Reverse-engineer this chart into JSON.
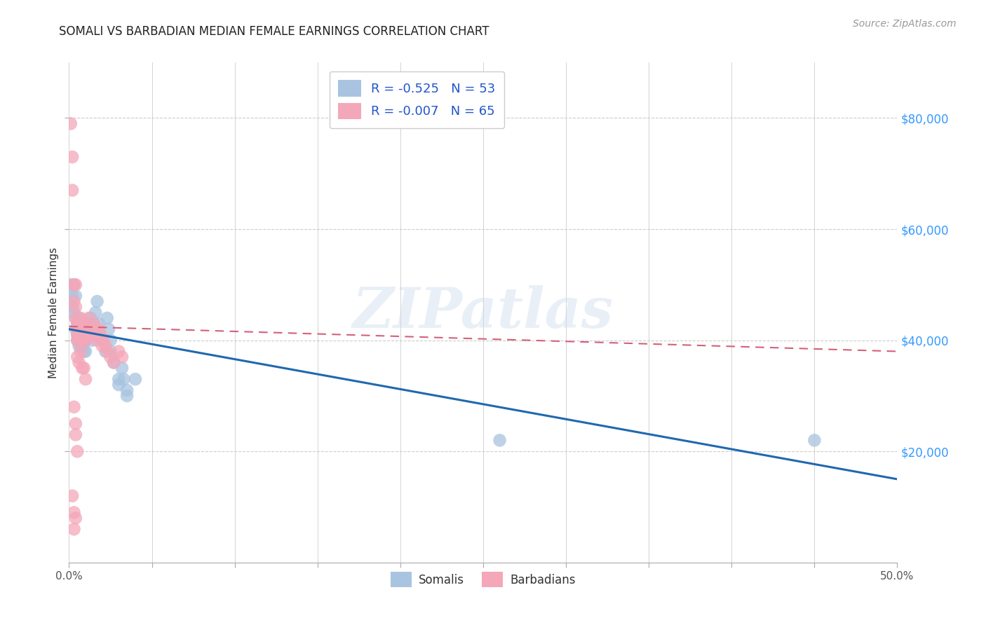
{
  "title": "SOMALI VS BARBADIAN MEDIAN FEMALE EARNINGS CORRELATION CHART",
  "source": "Source: ZipAtlas.com",
  "ylabel": "Median Female Earnings",
  "y_ticks": [
    20000,
    40000,
    60000,
    80000
  ],
  "y_tick_labels": [
    "$20,000",
    "$40,000",
    "$60,000",
    "$80,000"
  ],
  "x_min": 0.0,
  "x_max": 0.5,
  "y_min": 0,
  "y_max": 90000,
  "somali_R": -0.525,
  "somali_N": 53,
  "barbadian_R": -0.007,
  "barbadian_N": 65,
  "somali_color": "#a8c4e0",
  "barbadian_color": "#f4a7b9",
  "somali_line_color": "#2068b0",
  "barbadian_line_color": "#d4607a",
  "legend_label_somali": "Somalis",
  "legend_label_barbadian": "Barbadians",
  "somali_line_y0": 42000,
  "somali_line_y1": 15000,
  "barbadian_line_y0": 42500,
  "barbadian_line_y1": 38000,
  "somali_points": [
    [
      0.001,
      50000
    ],
    [
      0.002,
      48000
    ],
    [
      0.002,
      46000
    ],
    [
      0.003,
      50000
    ],
    [
      0.003,
      45000
    ],
    [
      0.004,
      48000
    ],
    [
      0.004,
      44000
    ],
    [
      0.004,
      42000
    ],
    [
      0.005,
      43000
    ],
    [
      0.005,
      41000
    ],
    [
      0.005,
      40000
    ],
    [
      0.006,
      44000
    ],
    [
      0.006,
      43000
    ],
    [
      0.006,
      41000
    ],
    [
      0.006,
      39000
    ],
    [
      0.007,
      42000
    ],
    [
      0.007,
      41000
    ],
    [
      0.007,
      39000
    ],
    [
      0.008,
      43000
    ],
    [
      0.008,
      41000
    ],
    [
      0.008,
      39000
    ],
    [
      0.009,
      40000
    ],
    [
      0.009,
      38000
    ],
    [
      0.01,
      42000
    ],
    [
      0.01,
      40000
    ],
    [
      0.01,
      38000
    ],
    [
      0.011,
      41000
    ],
    [
      0.012,
      43000
    ],
    [
      0.013,
      44000
    ],
    [
      0.013,
      42000
    ],
    [
      0.014,
      40000
    ],
    [
      0.015,
      43000
    ],
    [
      0.015,
      41000
    ],
    [
      0.016,
      45000
    ],
    [
      0.017,
      47000
    ],
    [
      0.018,
      43000
    ],
    [
      0.019,
      41000
    ],
    [
      0.02,
      40000
    ],
    [
      0.022,
      38000
    ],
    [
      0.023,
      44000
    ],
    [
      0.024,
      42000
    ],
    [
      0.025,
      40000
    ],
    [
      0.025,
      38000
    ],
    [
      0.027,
      36000
    ],
    [
      0.03,
      33000
    ],
    [
      0.03,
      32000
    ],
    [
      0.032,
      35000
    ],
    [
      0.033,
      33000
    ],
    [
      0.035,
      31000
    ],
    [
      0.035,
      30000
    ],
    [
      0.04,
      33000
    ],
    [
      0.26,
      22000
    ],
    [
      0.45,
      22000
    ]
  ],
  "barbadian_points": [
    [
      0.001,
      79000
    ],
    [
      0.002,
      73000
    ],
    [
      0.002,
      67000
    ],
    [
      0.003,
      50000
    ],
    [
      0.003,
      47000
    ],
    [
      0.004,
      50000
    ],
    [
      0.004,
      46000
    ],
    [
      0.004,
      44000
    ],
    [
      0.005,
      43000
    ],
    [
      0.005,
      42000
    ],
    [
      0.005,
      41000
    ],
    [
      0.005,
      40000
    ],
    [
      0.006,
      43000
    ],
    [
      0.006,
      42000
    ],
    [
      0.006,
      41000
    ],
    [
      0.006,
      40000
    ],
    [
      0.007,
      44000
    ],
    [
      0.007,
      43000
    ],
    [
      0.007,
      42000
    ],
    [
      0.007,
      41000
    ],
    [
      0.008,
      43000
    ],
    [
      0.008,
      42000
    ],
    [
      0.008,
      41000
    ],
    [
      0.008,
      40000
    ],
    [
      0.009,
      42000
    ],
    [
      0.009,
      41000
    ],
    [
      0.009,
      40000
    ],
    [
      0.01,
      42000
    ],
    [
      0.01,
      41000
    ],
    [
      0.01,
      40000
    ],
    [
      0.011,
      42000
    ],
    [
      0.011,
      41000
    ],
    [
      0.012,
      44000
    ],
    [
      0.012,
      42000
    ],
    [
      0.013,
      42000
    ],
    [
      0.013,
      41000
    ],
    [
      0.014,
      41000
    ],
    [
      0.015,
      43000
    ],
    [
      0.015,
      42000
    ],
    [
      0.016,
      41000
    ],
    [
      0.017,
      40000
    ],
    [
      0.018,
      42000
    ],
    [
      0.019,
      41000
    ],
    [
      0.02,
      39000
    ],
    [
      0.021,
      40000
    ],
    [
      0.022,
      39000
    ],
    [
      0.023,
      38000
    ],
    [
      0.025,
      37000
    ],
    [
      0.027,
      36000
    ],
    [
      0.03,
      38000
    ],
    [
      0.032,
      37000
    ],
    [
      0.003,
      28000
    ],
    [
      0.004,
      25000
    ],
    [
      0.005,
      37000
    ],
    [
      0.006,
      36000
    ],
    [
      0.007,
      38000
    ],
    [
      0.008,
      35000
    ],
    [
      0.009,
      35000
    ],
    [
      0.01,
      33000
    ],
    [
      0.002,
      12000
    ],
    [
      0.003,
      9000
    ],
    [
      0.004,
      23000
    ],
    [
      0.005,
      20000
    ],
    [
      0.004,
      8000
    ],
    [
      0.003,
      6000
    ]
  ],
  "watermark": "ZIPatlas",
  "background_color": "#ffffff",
  "grid_color": "#cccccc"
}
